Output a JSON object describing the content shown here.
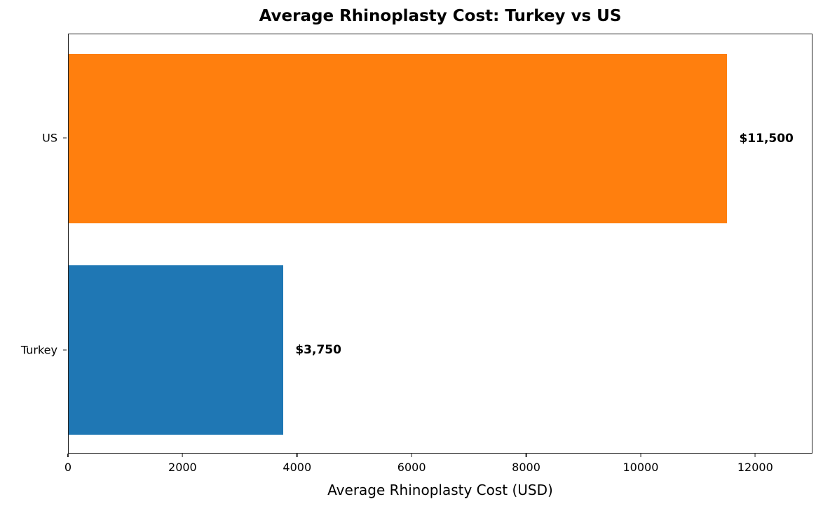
{
  "chart_data": {
    "type": "bar",
    "orientation": "horizontal",
    "title": "Average Rhinoplasty Cost: Turkey vs US",
    "xlabel": "Average Rhinoplasty Cost (USD)",
    "ylabel": "",
    "categories": [
      "Turkey",
      "US"
    ],
    "values": [
      3750,
      11500
    ],
    "value_labels": [
      "$3,750",
      "$11,500"
    ],
    "colors": [
      "#1f77b4",
      "#ff7f0e"
    ],
    "xlim": [
      0,
      13000
    ],
    "xticks": [
      0,
      2000,
      4000,
      6000,
      8000,
      10000,
      12000
    ],
    "xtick_labels": [
      "0",
      "2000",
      "4000",
      "6000",
      "8000",
      "10000",
      "12000"
    ],
    "grid": false,
    "legend": null
  }
}
